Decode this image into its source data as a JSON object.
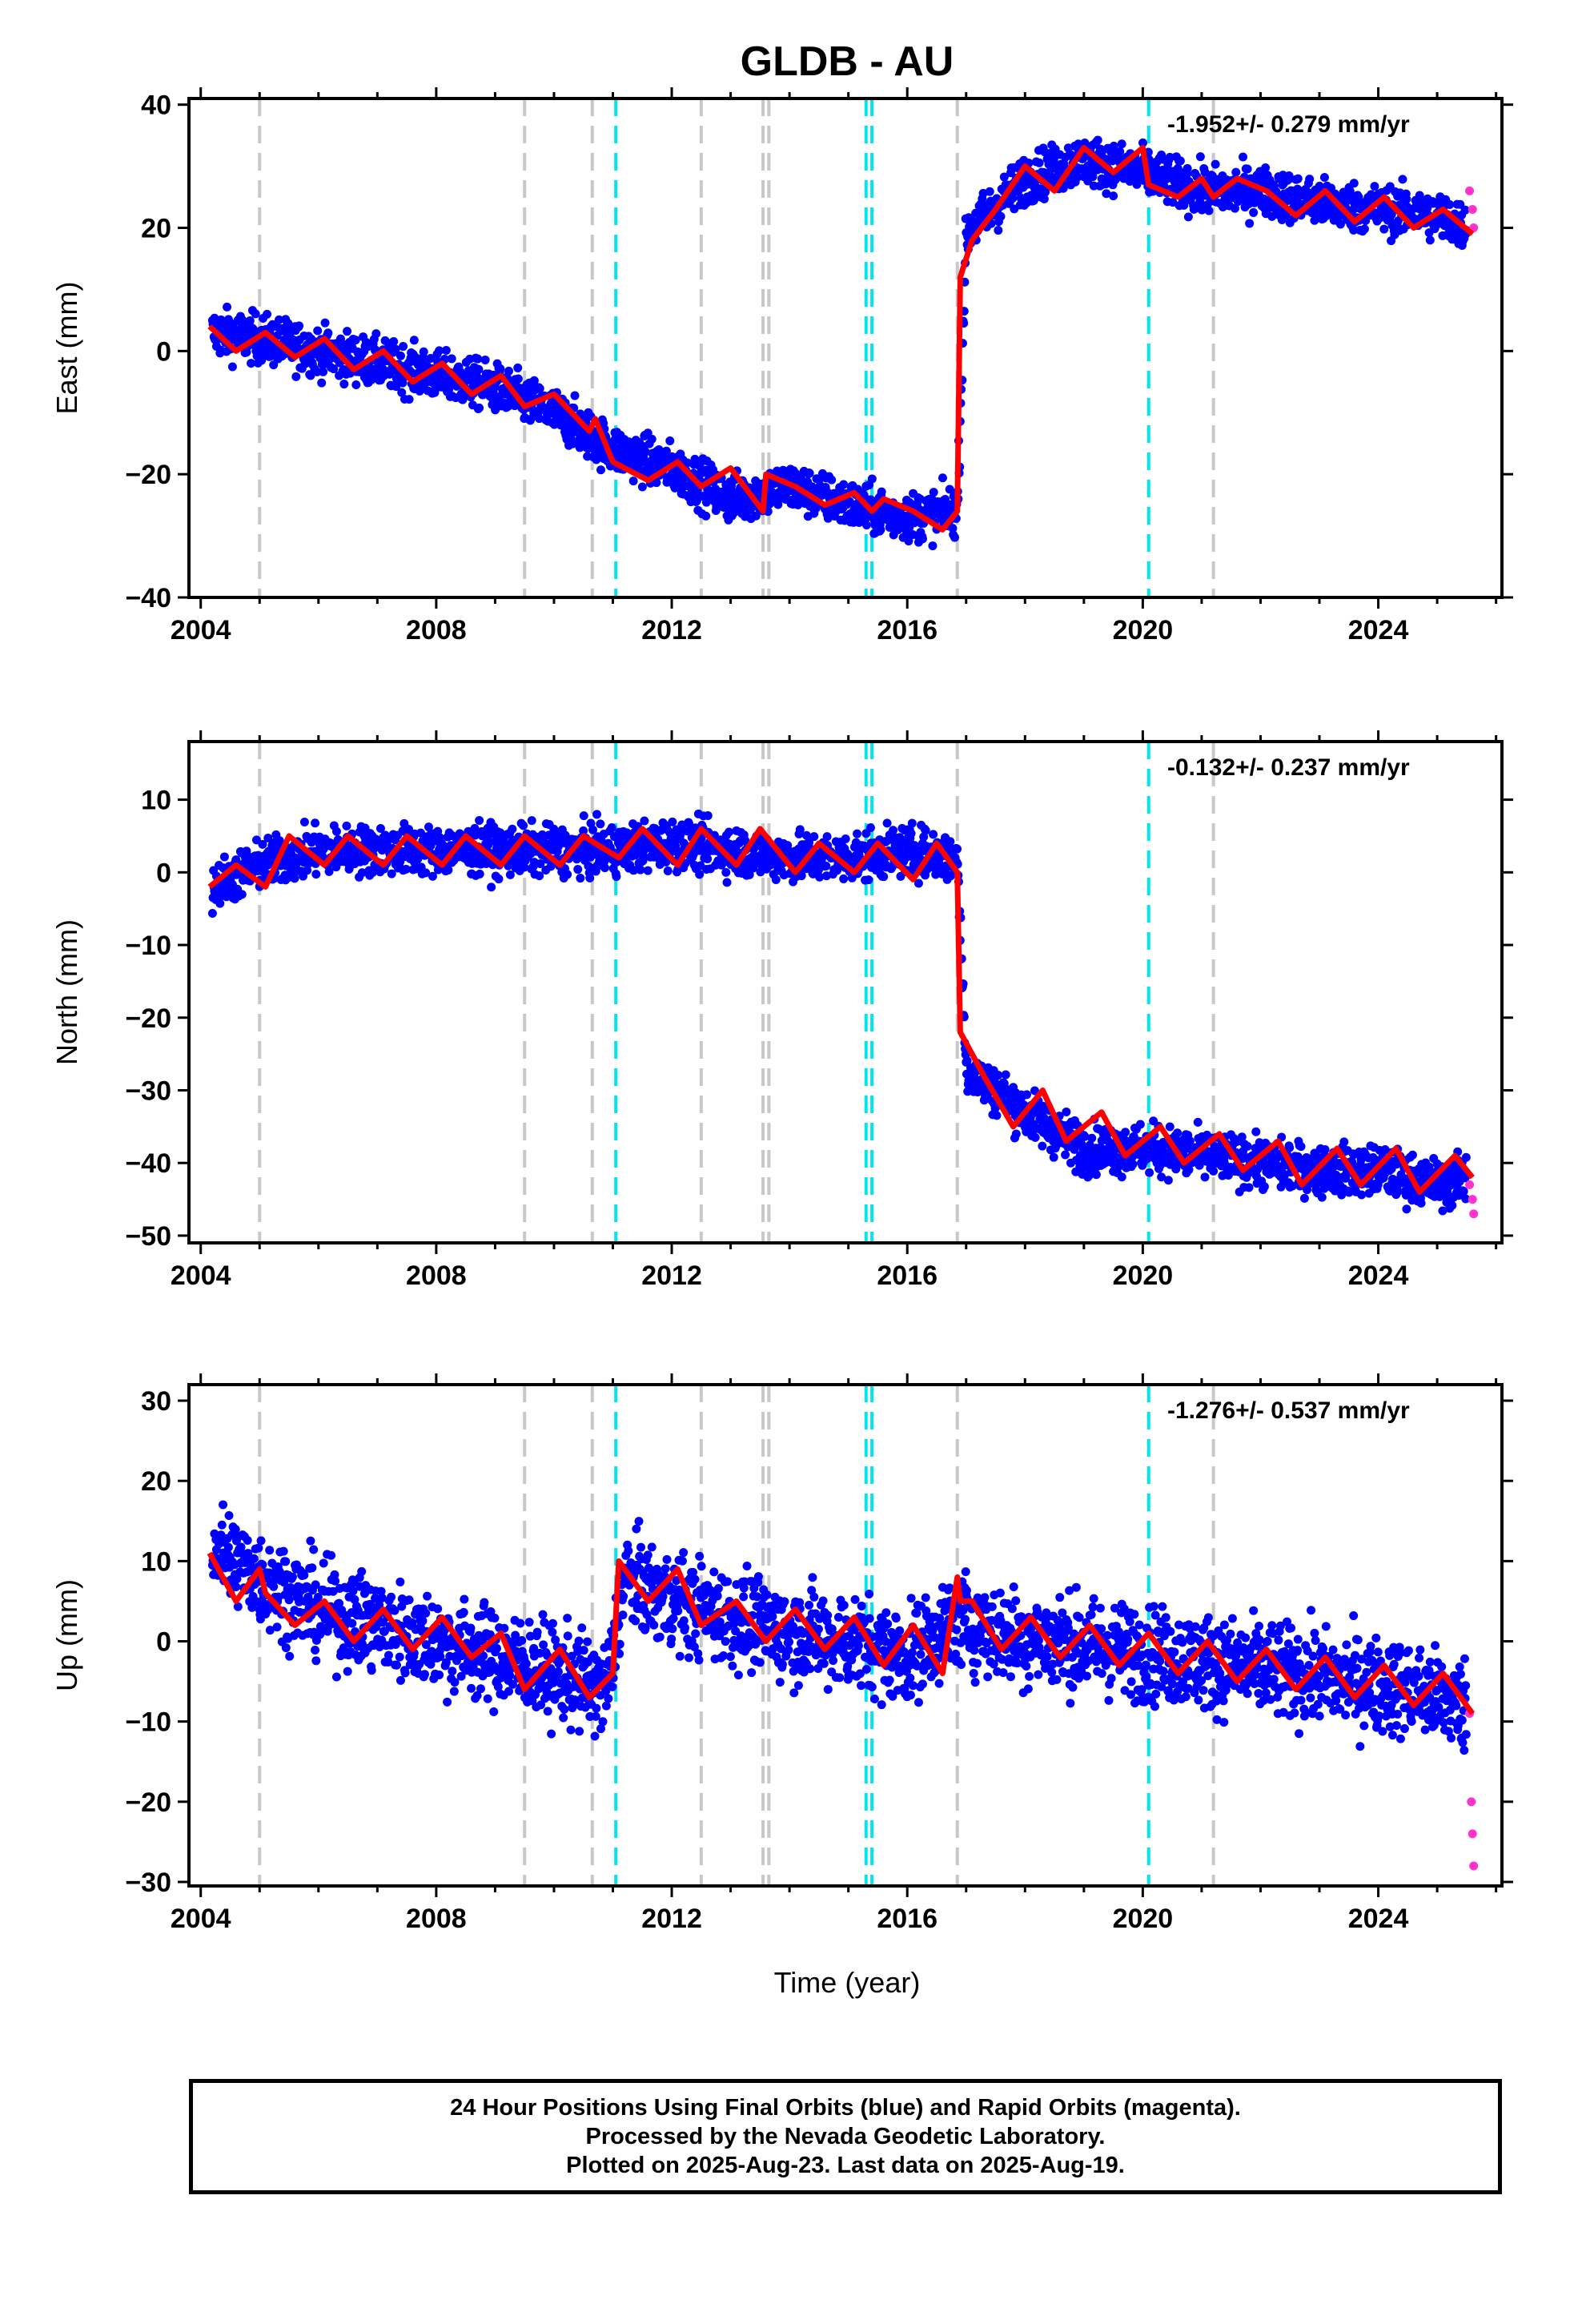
{
  "title": "GLDB - AU",
  "xlabel": "Time (year)",
  "footer": {
    "line1": "24 Hour Positions Using Final Orbits (blue) and Rapid Orbits (magenta).",
    "line2": "Processed by the Nevada Geodetic Laboratory.",
    "line3": "Plotted on 2025-Aug-23. Last data on 2025-Aug-19."
  },
  "colors": {
    "final": "#0000ff",
    "rapid": "#ff33cc",
    "model": "#ff0000",
    "equipment_change": "#c8c8c8",
    "earthquake": "#00e5ee"
  },
  "chart_data": [
    {
      "type": "scatter",
      "component": "east",
      "ylabel": "East (mm)",
      "rate_label": "-1.952+/- 0.279 mm/yr",
      "xlim": [
        2003.8,
        2026.1
      ],
      "ylim": [
        -40,
        41
      ],
      "xticks": [
        2004,
        2008,
        2012,
        2016,
        2020,
        2024
      ],
      "yticks": [
        -40,
        -20,
        0,
        20,
        40
      ],
      "grid": false,
      "series": [
        {
          "role": "final",
          "x": [
            2004.2,
            2005.0,
            2006.0,
            2007.0,
            2008.0,
            2009.0,
            2010.0,
            2011.0,
            2012.0,
            2013.0,
            2014.0,
            2015.0,
            2016.0,
            2016.85,
            2017.0,
            2018.0,
            2019.0,
            2020.0,
            2021.0,
            2022.0,
            2023.0,
            2024.0,
            2025.0,
            2025.5
          ],
          "y": [
            3,
            2,
            0,
            -2,
            -4,
            -6,
            -10,
            -16,
            -19,
            -24,
            -22,
            -25,
            -27,
            -26,
            19,
            28,
            31,
            29,
            26,
            26,
            24,
            23,
            22,
            20
          ]
        },
        {
          "role": "rapid",
          "x": [
            2025.55,
            2025.6,
            2025.62
          ],
          "y": [
            26,
            23,
            20
          ]
        },
        {
          "role": "model",
          "x": [
            2004.15,
            2004.6,
            2005.1,
            2005.6,
            2006.1,
            2006.6,
            2007.1,
            2007.6,
            2008.1,
            2008.6,
            2009.1,
            2009.5,
            2010.0,
            2010.6,
            2010.7,
            2011.0,
            2011.6,
            2012.1,
            2012.5,
            2013.0,
            2013.55,
            2013.6,
            2014.1,
            2014.6,
            2015.1,
            2015.4,
            2015.6,
            2016.1,
            2016.6,
            2016.85,
            2016.9,
            2017.1,
            2017.5,
            2018.0,
            2018.5,
            2019.0,
            2019.5,
            2020.0,
            2020.1,
            2020.6,
            2021.0,
            2021.2,
            2021.6,
            2022.1,
            2022.6,
            2023.1,
            2023.6,
            2024.1,
            2024.6,
            2025.1,
            2025.6
          ],
          "y": [
            4,
            0,
            3,
            -1,
            2,
            -3,
            0,
            -5,
            -2,
            -7,
            -4,
            -9,
            -7,
            -13,
            -11,
            -18,
            -21,
            -18,
            -22,
            -19,
            -26,
            -20,
            -22,
            -25,
            -23,
            -26,
            -24,
            -26,
            -29,
            -26,
            12,
            18,
            23,
            30,
            26,
            33,
            29,
            33,
            27,
            25,
            28,
            25,
            28,
            26,
            22,
            26,
            21,
            25,
            20,
            23,
            19
          ]
        }
      ],
      "vlines_equipment": [
        2005.0,
        2009.5,
        2010.65,
        2012.5,
        2013.55,
        2013.65,
        2016.85,
        2021.2
      ],
      "vlines_earthquake": [
        2011.05,
        2015.3,
        2015.4,
        2020.1
      ]
    },
    {
      "type": "scatter",
      "component": "north",
      "ylabel": "North (mm)",
      "rate_label": "-0.132+/- 0.237 mm/yr",
      "xlim": [
        2003.8,
        2026.1
      ],
      "ylim": [
        -51,
        18
      ],
      "xticks": [
        2004,
        2008,
        2012,
        2016,
        2020,
        2024
      ],
      "yticks": [
        -50,
        -40,
        -30,
        -20,
        -10,
        0,
        10
      ],
      "grid": false,
      "series": [
        {
          "role": "final",
          "x": [
            2004.2,
            2005.0,
            2006.0,
            2007.0,
            2008.0,
            2009.0,
            2010.0,
            2011.0,
            2012.0,
            2013.0,
            2014.0,
            2015.0,
            2016.0,
            2016.85,
            2017.0,
            2018.0,
            2019.0,
            2020.0,
            2021.0,
            2022.0,
            2023.0,
            2024.0,
            2025.0,
            2025.5
          ],
          "y": [
            -2,
            1,
            3,
            3,
            3,
            3,
            3,
            3,
            4,
            3,
            2,
            2,
            3,
            2,
            -27,
            -33,
            -38,
            -38,
            -39,
            -40,
            -41,
            -41,
            -43,
            -42
          ]
        },
        {
          "role": "rapid",
          "x": [
            2025.55,
            2025.6,
            2025.62
          ],
          "y": [
            -43,
            -45,
            -47
          ]
        },
        {
          "role": "model",
          "x": [
            2004.15,
            2004.6,
            2005.1,
            2005.5,
            2006.1,
            2006.5,
            2007.1,
            2007.5,
            2008.1,
            2008.5,
            2009.1,
            2009.5,
            2010.1,
            2010.5,
            2011.1,
            2011.5,
            2012.1,
            2012.5,
            2013.1,
            2013.5,
            2014.1,
            2014.5,
            2015.1,
            2015.5,
            2016.1,
            2016.5,
            2016.85,
            2016.9,
            2017.3,
            2017.8,
            2018.3,
            2018.7,
            2019.3,
            2019.7,
            2020.3,
            2020.7,
            2021.3,
            2021.7,
            2022.3,
            2022.7,
            2023.3,
            2023.7,
            2024.3,
            2024.7,
            2025.3,
            2025.6
          ],
          "y": [
            -2,
            1,
            -2,
            5,
            1,
            5,
            1,
            5,
            1,
            5,
            1,
            5,
            1,
            5,
            2,
            6,
            1,
            6,
            1,
            6,
            0,
            4,
            0,
            4,
            -1,
            4,
            0,
            -22,
            -28,
            -35,
            -30,
            -37,
            -33,
            -39,
            -35,
            -40,
            -36,
            -41,
            -37,
            -43,
            -38,
            -43,
            -38,
            -44,
            -39,
            -42
          ]
        }
      ],
      "vlines_equipment": [
        2005.0,
        2009.5,
        2010.65,
        2012.5,
        2013.55,
        2013.65,
        2016.85,
        2021.2
      ],
      "vlines_earthquake": [
        2011.05,
        2015.3,
        2015.4,
        2020.1
      ]
    },
    {
      "type": "scatter",
      "component": "up",
      "ylabel": "Up (mm)",
      "rate_label": "-1.276+/- 0.537 mm/yr",
      "xlim": [
        2003.8,
        2026.1
      ],
      "ylim": [
        -30.5,
        32
      ],
      "xticks": [
        2004,
        2008,
        2012,
        2016,
        2020,
        2024
      ],
      "yticks": [
        -30,
        -20,
        -10,
        0,
        10,
        20,
        30
      ],
      "grid": false,
      "series": [
        {
          "role": "final",
          "x": [
            2004.2,
            2005.0,
            2006.0,
            2007.0,
            2008.0,
            2009.0,
            2010.0,
            2010.9,
            2011.2,
            2012.0,
            2013.0,
            2014.0,
            2015.0,
            2016.0,
            2016.9,
            2017.5,
            2018.5,
            2019.5,
            2020.5,
            2021.5,
            2022.5,
            2023.5,
            2024.5,
            2025.5
          ],
          "y": [
            12,
            8,
            4,
            2,
            0,
            -2,
            -4,
            -6,
            8,
            5,
            3,
            1,
            0,
            -2,
            3,
            1,
            0,
            -1,
            -2,
            -3,
            -4,
            -5,
            -6,
            -8
          ]
        },
        {
          "role": "rapid",
          "x": [
            2025.55,
            2025.58,
            2025.6,
            2025.62
          ],
          "y": [
            -9,
            -20,
            -24,
            -28
          ]
        },
        {
          "role": "model",
          "x": [
            2004.15,
            2004.6,
            2005.0,
            2005.1,
            2005.6,
            2006.1,
            2006.6,
            2007.1,
            2007.6,
            2008.1,
            2008.6,
            2009.1,
            2009.5,
            2010.1,
            2010.6,
            2011.0,
            2011.1,
            2011.6,
            2012.1,
            2012.5,
            2013.1,
            2013.6,
            2014.1,
            2014.6,
            2015.1,
            2015.6,
            2016.1,
            2016.6,
            2016.85,
            2016.9,
            2017.1,
            2017.6,
            2018.1,
            2018.6,
            2019.1,
            2019.6,
            2020.1,
            2020.6,
            2021.1,
            2021.6,
            2022.1,
            2022.6,
            2023.1,
            2023.6,
            2024.1,
            2024.6,
            2025.1,
            2025.6
          ],
          "y": [
            11,
            5,
            9,
            6,
            2,
            5,
            0,
            4,
            -1,
            3,
            -2,
            1,
            -6,
            -1,
            -7,
            -4,
            10,
            5,
            9,
            2,
            5,
            0,
            4,
            -1,
            3,
            -3,
            2,
            -4,
            8,
            5,
            5,
            -1,
            3,
            -2,
            2,
            -3,
            1,
            -4,
            0,
            -5,
            -1,
            -6,
            -2,
            -7,
            -3,
            -8,
            -4,
            -9
          ]
        }
      ],
      "vlines_equipment": [
        2005.0,
        2009.5,
        2010.65,
        2012.5,
        2013.55,
        2013.65,
        2016.85,
        2021.2
      ],
      "vlines_earthquake": [
        2011.05,
        2015.3,
        2015.4,
        2020.1
      ]
    }
  ]
}
